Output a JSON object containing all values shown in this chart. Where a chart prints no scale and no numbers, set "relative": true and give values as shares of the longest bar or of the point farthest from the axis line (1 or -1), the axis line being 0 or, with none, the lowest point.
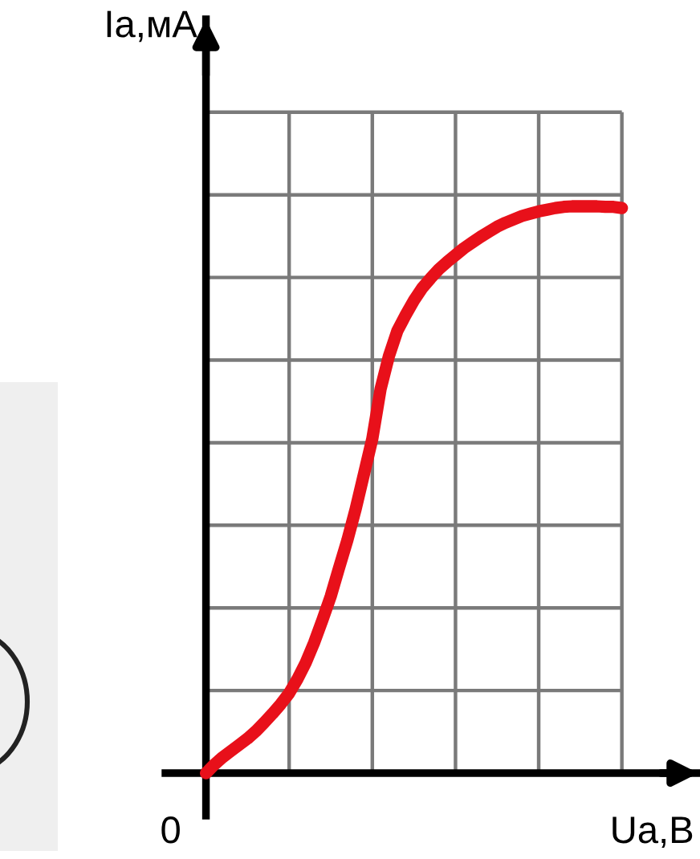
{
  "chart_data": {
    "type": "line",
    "relative": true,
    "xlabel": "Ua,В",
    "ylabel": "Ia,мА",
    "annotations": [
      "0"
    ],
    "grid": true,
    "categories": [
      null,
      null,
      null,
      null,
      null,
      null,
      null,
      null,
      null,
      null,
      null,
      null,
      null,
      null,
      null,
      null,
      null,
      null,
      null,
      null,
      null,
      null,
      null,
      null,
      null,
      null,
      null,
      null,
      null,
      null,
      null,
      null,
      null,
      null,
      null,
      null,
      null,
      null,
      null,
      null,
      null,
      null,
      null,
      null,
      null,
      null,
      null,
      null,
      null,
      null,
      null
    ],
    "series": [
      {
        "color": "#e8101a",
        "values": [
          0,
          0.015,
          0.028,
          0.039,
          0.05,
          0.061,
          0.074,
          0.089,
          0.105,
          0.122,
          0.141,
          0.166,
          0.195,
          0.23,
          0.27,
          0.312,
          0.362,
          0.411,
          0.466,
          0.528,
          0.59,
          0.678,
          0.736,
          0.78,
          0.808,
          0.834,
          0.856,
          0.873,
          0.889,
          0.902,
          0.914,
          0.926,
          0.936,
          0.946,
          0.955,
          0.964,
          0.971,
          0.977,
          0.983,
          0.987,
          0.991,
          0.994,
          0.997,
          0.999,
          1,
          1,
          1,
          1,
          0.999,
          0.999,
          0.997
        ]
      }
    ]
  }
}
